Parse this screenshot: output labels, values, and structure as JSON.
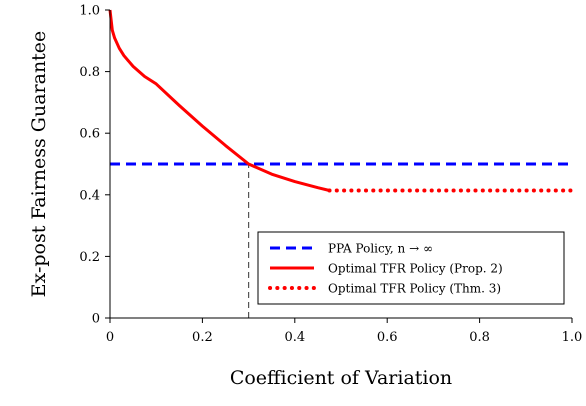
{
  "chart_data": {
    "type": "line",
    "xlabel": "Coefficient of Variation",
    "ylabel": "Ex-post Fairness Guarantee",
    "xlim": [
      0,
      1
    ],
    "ylim": [
      0,
      1
    ],
    "xticks": [
      "0",
      "0.2",
      "0.4",
      "0.6",
      "0.8",
      "1.0"
    ],
    "yticks": [
      "0",
      "0.2",
      "0.4",
      "0.6",
      "0.8",
      "1.0"
    ],
    "grid": false,
    "legend_position": "bottom-right",
    "series": [
      {
        "name": "PPA Policy, n → ∞",
        "style": "dashed",
        "color": "#0000ff",
        "x": [
          0,
          1
        ],
        "y": [
          0.5,
          0.5
        ]
      },
      {
        "name": "Optimal TFR Policy (Prop. 2)",
        "style": "solid",
        "color": "#ff0000",
        "x": [
          0,
          0.005,
          0.01,
          0.02,
          0.03,
          0.05,
          0.075,
          0.1,
          0.15,
          0.2,
          0.25,
          0.3,
          0.35,
          0.4,
          0.45,
          0.475
        ],
        "y": [
          1.0,
          0.934,
          0.909,
          0.876,
          0.852,
          0.817,
          0.784,
          0.76,
          0.69,
          0.623,
          0.56,
          0.5,
          0.467,
          0.443,
          0.423,
          0.414
        ]
      },
      {
        "name": "Optimal TFR Policy (Thm. 3)",
        "style": "dotted",
        "color": "#ff0000",
        "x": [
          0.475,
          1
        ],
        "y": [
          0.414,
          0.414
        ]
      }
    ],
    "annotations": [
      {
        "type": "vertical-dashed-line",
        "x": 0.3,
        "y_from": 0,
        "y_to": 0.5,
        "color": "#555555"
      }
    ]
  }
}
